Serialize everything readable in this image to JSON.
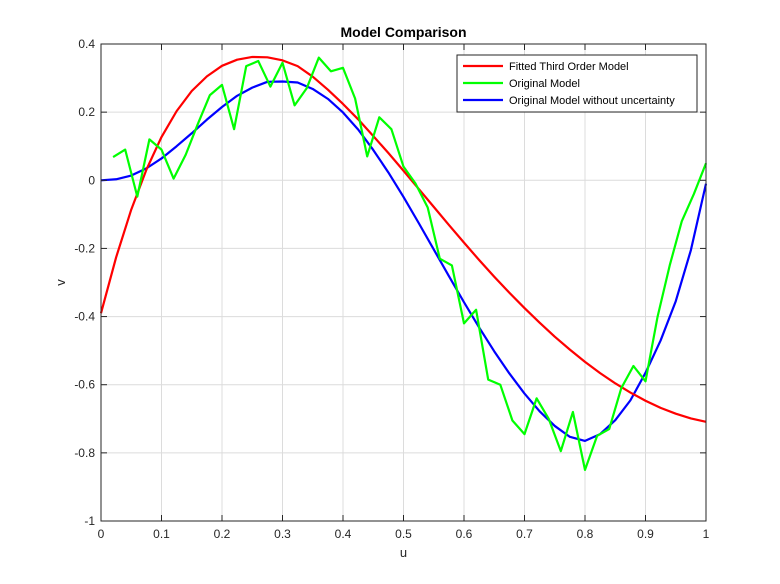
{
  "chart_data": {
    "type": "line",
    "title": "Model Comparison",
    "xlabel": "u",
    "ylabel": "v",
    "xlim": [
      0,
      1
    ],
    "ylim": [
      -1,
      0.4
    ],
    "xticks": [
      0,
      0.1,
      0.2,
      0.3,
      0.4,
      0.5,
      0.6,
      0.7,
      0.8,
      0.9,
      1
    ],
    "xtick_labels": [
      "0",
      "0.1",
      "0.2",
      "0.3",
      "0.4",
      "0.5",
      "0.6",
      "0.7",
      "0.8",
      "0.9",
      "1"
    ],
    "yticks": [
      -1,
      -0.8,
      -0.6,
      -0.4,
      -0.2,
      0,
      0.2,
      0.4
    ],
    "ytick_labels": [
      "-1",
      "-0.8",
      "-0.6",
      "-0.4",
      "-0.2",
      "0",
      "0.2",
      "0.4"
    ],
    "grid": true,
    "legend_position": "top-right",
    "series": [
      {
        "name": "Fitted Third Order Model",
        "color": "#ff0000",
        "x": [
          0,
          0.025,
          0.05,
          0.075,
          0.1,
          0.125,
          0.15,
          0.175,
          0.2,
          0.225,
          0.25,
          0.275,
          0.3,
          0.325,
          0.35,
          0.375,
          0.4,
          0.425,
          0.45,
          0.475,
          0.5,
          0.525,
          0.55,
          0.575,
          0.6,
          0.625,
          0.65,
          0.675,
          0.7,
          0.725,
          0.75,
          0.775,
          0.8,
          0.825,
          0.85,
          0.875,
          0.9,
          0.925,
          0.95,
          0.975,
          1
        ],
        "y": [
          -0.39,
          -0.226,
          -0.086,
          0.031,
          0.127,
          0.203,
          0.262,
          0.305,
          0.336,
          0.354,
          0.362,
          0.361,
          0.352,
          0.335,
          0.304,
          0.266,
          0.224,
          0.179,
          0.13,
          0.08,
          0.028,
          -0.025,
          -0.078,
          -0.131,
          -0.183,
          -0.234,
          -0.283,
          -0.33,
          -0.375,
          -0.418,
          -0.459,
          -0.497,
          -0.533,
          -0.566,
          -0.596,
          -0.623,
          -0.647,
          -0.668,
          -0.685,
          -0.699,
          -0.709
        ]
      },
      {
        "name": "Original Model",
        "color": "#00ff00",
        "x": [
          0.02,
          0.04,
          0.06,
          0.08,
          0.1,
          0.12,
          0.14,
          0.16,
          0.18,
          0.2,
          0.22,
          0.24,
          0.26,
          0.28,
          0.3,
          0.32,
          0.34,
          0.36,
          0.38,
          0.4,
          0.42,
          0.44,
          0.46,
          0.48,
          0.5,
          0.52,
          0.54,
          0.56,
          0.58,
          0.6,
          0.62,
          0.64,
          0.66,
          0.68,
          0.7,
          0.72,
          0.74,
          0.76,
          0.78,
          0.8,
          0.82,
          0.84,
          0.86,
          0.88,
          0.9,
          0.92,
          0.94,
          0.96,
          0.98,
          1
        ],
        "y": [
          0.068,
          0.09,
          -0.048,
          0.12,
          0.09,
          0.005,
          0.075,
          0.165,
          0.25,
          0.28,
          0.15,
          0.335,
          0.35,
          0.275,
          0.345,
          0.22,
          0.27,
          0.36,
          0.32,
          0.33,
          0.24,
          0.07,
          0.185,
          0.15,
          0.04,
          -0.01,
          -0.08,
          -0.23,
          -0.25,
          -0.42,
          -0.38,
          -0.585,
          -0.6,
          -0.705,
          -0.745,
          -0.64,
          -0.7,
          -0.795,
          -0.68,
          -0.85,
          -0.75,
          -0.73,
          -0.61,
          -0.545,
          -0.59,
          -0.4,
          -0.25,
          -0.12,
          -0.04,
          0.05
        ]
      },
      {
        "name": "Original Model without uncertainty",
        "color": "#0000ff",
        "x": [
          0,
          0.025,
          0.05,
          0.075,
          0.1,
          0.125,
          0.15,
          0.175,
          0.2,
          0.225,
          0.25,
          0.275,
          0.3,
          0.325,
          0.35,
          0.375,
          0.4,
          0.425,
          0.45,
          0.475,
          0.5,
          0.525,
          0.55,
          0.575,
          0.6,
          0.625,
          0.65,
          0.675,
          0.7,
          0.725,
          0.75,
          0.775,
          0.8,
          0.825,
          0.85,
          0.875,
          0.9,
          0.925,
          0.95,
          0.975,
          1
        ],
        "y": [
          0,
          0.003,
          0.014,
          0.035,
          0.064,
          0.1,
          0.138,
          0.178,
          0.215,
          0.248,
          0.272,
          0.289,
          0.29,
          0.287,
          0.268,
          0.239,
          0.199,
          0.149,
          0.089,
          0.023,
          -0.049,
          -0.125,
          -0.203,
          -0.281,
          -0.358,
          -0.432,
          -0.502,
          -0.567,
          -0.626,
          -0.678,
          -0.721,
          -0.753,
          -0.765,
          -0.745,
          -0.704,
          -0.646,
          -0.565,
          -0.47,
          -0.355,
          -0.205,
          -0.01
        ]
      }
    ]
  }
}
